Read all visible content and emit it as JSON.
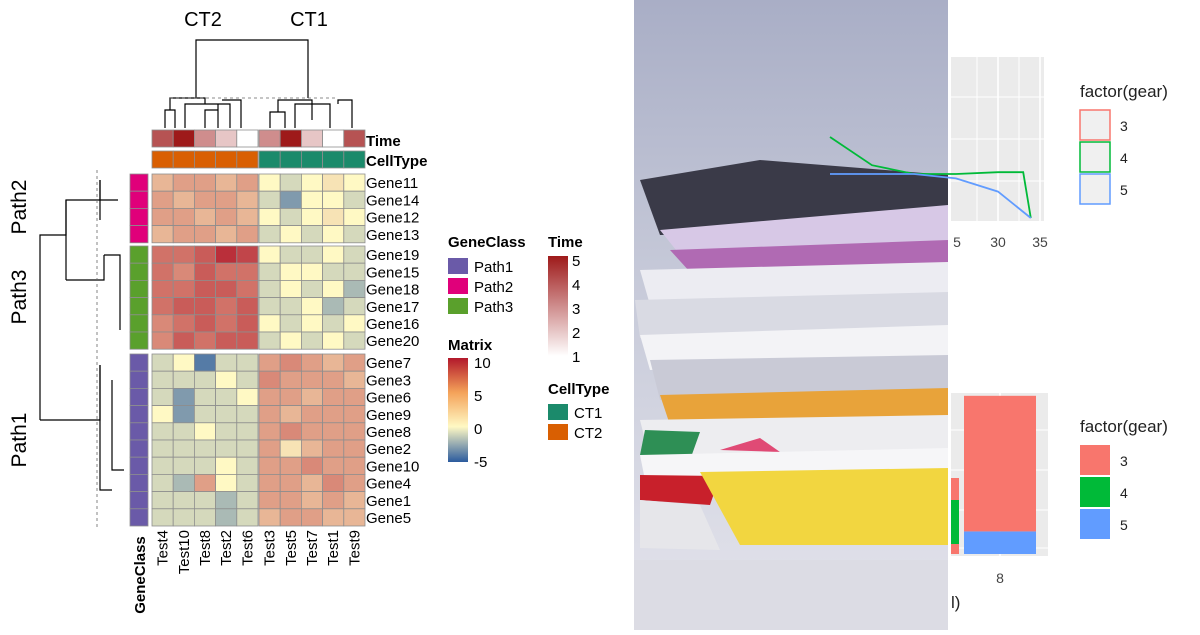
{
  "chart_data": [
    {
      "type": "heatmap",
      "column_groups": [
        {
          "name": "CT2",
          "columns": [
            "Test4",
            "Test10",
            "Test8",
            "Test2",
            "Test6"
          ]
        },
        {
          "name": "CT1",
          "columns": [
            "Test3",
            "Test5",
            "Test7",
            "Test1",
            "Test9"
          ]
        }
      ],
      "row_groups": [
        {
          "name": "Path2",
          "rows": [
            "Gene11",
            "Gene14",
            "Gene12",
            "Gene13"
          ]
        },
        {
          "name": "Path3",
          "rows": [
            "Gene19",
            "Gene15",
            "Gene18",
            "Gene17",
            "Gene16",
            "Gene20"
          ]
        },
        {
          "name": "Path1",
          "rows": [
            "Gene7",
            "Gene3",
            "Gene6",
            "Gene9",
            "Gene8",
            "Gene2",
            "Gene10",
            "Gene4",
            "Gene1",
            "Gene5"
          ]
        }
      ],
      "values": [
        [
          3,
          4,
          4,
          3,
          4,
          0,
          -1,
          0,
          1,
          0
        ],
        [
          4,
          3,
          4,
          4,
          3,
          -1,
          -3,
          0,
          0,
          -1
        ],
        [
          4,
          4,
          3,
          4,
          3,
          0,
          -1,
          0,
          1,
          0
        ],
        [
          3,
          4,
          4,
          3,
          4,
          -1,
          0,
          -1,
          0,
          -1
        ],
        [
          6,
          6,
          7,
          9,
          8,
          0,
          -1,
          -1,
          0,
          -1
        ],
        [
          6,
          5,
          7,
          6,
          6,
          -1,
          0,
          0,
          -1,
          -1
        ],
        [
          6,
          6,
          7,
          7,
          6,
          -1,
          0,
          -1,
          0,
          -2
        ],
        [
          6,
          7,
          7,
          6,
          7,
          -1,
          -1,
          0,
          -2,
          -1
        ],
        [
          5,
          6,
          7,
          6,
          7,
          0,
          -1,
          0,
          -1,
          0
        ],
        [
          5,
          7,
          6,
          7,
          7,
          -1,
          0,
          -1,
          0,
          -1
        ],
        [
          -1,
          0,
          -4,
          -1,
          -1,
          4,
          5,
          4,
          3,
          4
        ],
        [
          -1,
          -1,
          -1,
          0,
          -1,
          5,
          4,
          4,
          4,
          3
        ],
        [
          -1,
          -3,
          -1,
          -1,
          0,
          4,
          4,
          3,
          4,
          4
        ],
        [
          0,
          -3,
          -1,
          -1,
          -1,
          4,
          3,
          4,
          4,
          4
        ],
        [
          -1,
          -1,
          0,
          -1,
          -1,
          4,
          5,
          4,
          4,
          4
        ],
        [
          -1,
          -1,
          -1,
          -1,
          -1,
          4,
          1,
          3,
          4,
          4
        ],
        [
          -1,
          -1,
          -1,
          0,
          -1,
          4,
          4,
          5,
          4,
          4
        ],
        [
          -1,
          -2,
          4,
          0,
          -1,
          4,
          4,
          3,
          5,
          4
        ],
        [
          -1,
          -1,
          -1,
          -2,
          -1,
          4,
          4,
          3,
          4,
          3
        ],
        [
          -1,
          -1,
          -1,
          -2,
          -1,
          3,
          4,
          4,
          3,
          3
        ]
      ],
      "annotations": {
        "Time": {
          "label": "Time",
          "values": [
            4,
            5,
            3,
            2,
            1,
            3,
            5,
            2,
            1,
            4
          ]
        },
        "CellType": {
          "label": "CellType",
          "values": [
            "CT2",
            "CT2",
            "CT2",
            "CT2",
            "CT2",
            "CT1",
            "CT1",
            "CT1",
            "CT1",
            "CT1"
          ]
        },
        "GeneClass": {
          "label": "GeneClass"
        }
      },
      "legends": {
        "GeneClass": {
          "title": "GeneClass",
          "items": [
            {
              "label": "Path1",
              "color": "#6A5AA8"
            },
            {
              "label": "Path2",
              "color": "#E0007A"
            },
            {
              "label": "Path3",
              "color": "#5AA02C"
            }
          ]
        },
        "Matrix": {
          "title": "Matrix",
          "ticks": [
            "10",
            "5",
            "0",
            "-5"
          ],
          "range": [
            -5,
            10
          ]
        },
        "Time": {
          "title": "Time",
          "ticks": [
            "5",
            "4",
            "3",
            "2",
            "1"
          ],
          "range": [
            1,
            5
          ]
        },
        "CellType": {
          "title": "CellType",
          "items": [
            {
              "label": "CT1",
              "color": "#1B8A6B"
            },
            {
              "label": "CT2",
              "color": "#D95F02"
            }
          ]
        }
      },
      "colors": {
        "low": "#2B5B9E",
        "mid": "#FFF9C4",
        "high": "#B2182B",
        "time_low": "#FFFFFF",
        "time_high": "#9E1A1A"
      }
    },
    {
      "type": "line",
      "x_ticks": [
        "5",
        "30",
        "35"
      ],
      "series": [
        {
          "name": "4",
          "color": "#00BA38",
          "x": [
            10,
            15,
            20,
            25,
            30,
            33,
            33.9
          ],
          "y": [
            0.92,
            0.6,
            0.5,
            0.5,
            0.52,
            0.52,
            0.0
          ]
        },
        {
          "name": "5",
          "color": "#619CFF",
          "x": [
            10,
            15,
            20,
            25,
            30,
            33.9,
            33.9
          ],
          "y": [
            0.5,
            0.5,
            0.5,
            0.45,
            0.3,
            0.0,
            0.0
          ]
        }
      ],
      "legend": {
        "title": "factor(gear)",
        "items": [
          {
            "label": "3",
            "color": "#F8766D"
          },
          {
            "label": "4",
            "color": "#00BA38"
          },
          {
            "label": "5",
            "color": "#619CFF"
          }
        ]
      },
      "grid": true
    },
    {
      "type": "bar",
      "categories": [
        "8"
      ],
      "series": [
        {
          "name": "3",
          "color": "#F8766D",
          "values": [
            12
          ]
        },
        {
          "name": "5",
          "color": "#619CFF",
          "values": [
            2
          ]
        }
      ],
      "axis_fragment": "l)",
      "legend": {
        "title": "factor(gear)",
        "items": [
          {
            "label": "3",
            "color": "#F8766D"
          },
          {
            "label": "4",
            "color": "#00BA38"
          },
          {
            "label": "5",
            "color": "#619CFF"
          }
        ]
      },
      "grid": true
    }
  ]
}
